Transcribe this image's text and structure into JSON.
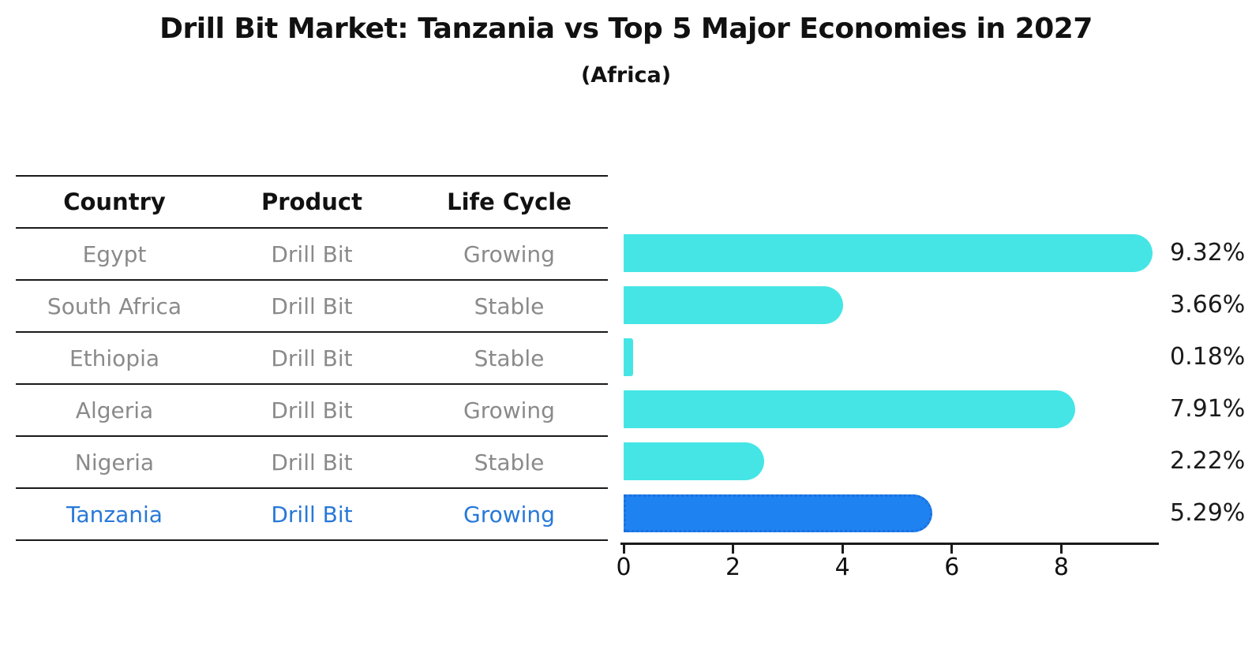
{
  "title": "Drill Bit Market: Tanzania vs Top 5 Major Economies in 2027",
  "subtitle": "(Africa)",
  "table": {
    "headers": [
      "Country",
      "Product",
      "Life Cycle"
    ],
    "rows": [
      {
        "country": "Egypt",
        "product": "Drill Bit",
        "life_cycle": "Growing",
        "highlight": false
      },
      {
        "country": "South Africa",
        "product": "Drill Bit",
        "life_cycle": "Stable",
        "highlight": false
      },
      {
        "country": "Ethiopia",
        "product": "Drill Bit",
        "life_cycle": "Stable",
        "highlight": false
      },
      {
        "country": "Algeria",
        "product": "Drill Bit",
        "life_cycle": "Growing",
        "highlight": false
      },
      {
        "country": "Nigeria",
        "product": "Drill Bit",
        "life_cycle": "Stable",
        "highlight": false
      },
      {
        "country": "Tanzania",
        "product": "Drill Bit",
        "life_cycle": "Growing",
        "highlight": true
      }
    ]
  },
  "chart_data": {
    "type": "bar",
    "orientation": "horizontal",
    "title": "Drill Bit Market: Tanzania vs Top 5 Major Economies in 2027",
    "subtitle": "(Africa)",
    "categories": [
      "Egypt",
      "South Africa",
      "Ethiopia",
      "Algeria",
      "Nigeria",
      "Tanzania"
    ],
    "values": [
      9.32,
      3.66,
      0.18,
      7.91,
      2.22,
      5.29
    ],
    "value_labels": [
      "9.32%",
      "3.66%",
      "0.18%",
      "7.91%",
      "2.22%",
      "5.29%"
    ],
    "x_ticks": [
      0,
      2,
      4,
      6,
      8
    ],
    "xlim": [
      0,
      9.7
    ],
    "grid": false,
    "legend": false,
    "highlight_index": 5,
    "colors": {
      "bar_default": "#46e5e5",
      "bar_highlight": "#1e82f0",
      "bar_highlight_border": "#1d6fe0",
      "highlight_text": "#2878d8",
      "row_text": "#8a8a8a",
      "text": "#111111"
    }
  }
}
